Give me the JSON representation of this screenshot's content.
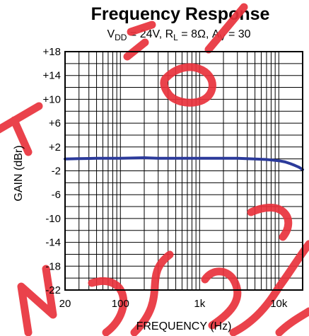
{
  "chart_data": {
    "type": "line",
    "title": "Frequency Response",
    "subtitle": {
      "vdd_main": "V",
      "vdd_sub": "DD",
      "vdd_val": " = 24V, ",
      "rl_main": "R",
      "rl_sub": "L",
      "rl_val": " = 8Ω, ",
      "av_main": "A",
      "av_sub": "V",
      "av_val": " = 30"
    },
    "xlabel": "FREQUENCY (Hz)",
    "ylabel": "GAIN (dBr)",
    "x_scale": "log",
    "xlim": [
      20,
      20000
    ],
    "ylim": [
      -22,
      18
    ],
    "x_ticks": [
      {
        "value": 20,
        "label": "20"
      },
      {
        "value": 100,
        "label": "100"
      },
      {
        "value": 1000,
        "label": "1k"
      },
      {
        "value": 10000,
        "label": "10k"
      }
    ],
    "y_ticks": [
      {
        "value": 18,
        "label": "+18"
      },
      {
        "value": 14,
        "label": "+14"
      },
      {
        "value": 10,
        "label": "+10"
      },
      {
        "value": 6,
        "label": "+6"
      },
      {
        "value": 2,
        "label": "+2"
      },
      {
        "value": -2,
        "label": "-2"
      },
      {
        "value": -6,
        "label": "-6"
      },
      {
        "value": -10,
        "label": "-10"
      },
      {
        "value": -14,
        "label": "-14"
      },
      {
        "value": -18,
        "label": "-18"
      },
      {
        "value": -22,
        "label": "-22"
      }
    ],
    "grid": true,
    "series": [
      {
        "color": "#2b3a9a",
        "x": [
          20,
          30,
          50,
          100,
          200,
          300,
          500,
          1000,
          2000,
          3000,
          5000,
          7000,
          10000,
          12000,
          14000,
          16000,
          18000,
          20000
        ],
        "y": [
          0.0,
          0.05,
          0.1,
          0.1,
          0.2,
          0.1,
          0.1,
          0.1,
          0.1,
          0.1,
          0.0,
          -0.1,
          -0.3,
          -0.5,
          -0.8,
          -1.1,
          -1.4,
          -1.8
        ]
      }
    ]
  },
  "watermark": {
    "text": "NOT RECOMMENDED FOR NEW DESIGNS",
    "color": "#e8323c"
  }
}
